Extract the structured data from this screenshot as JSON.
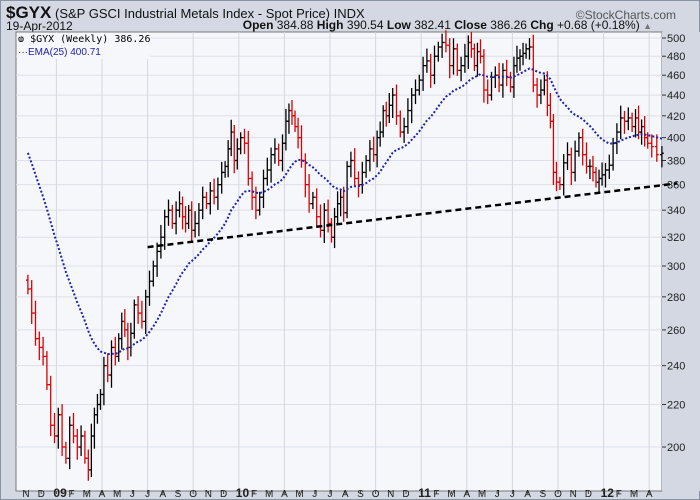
{
  "header": {
    "symbol": "$GYX",
    "name": "(S&P GSCI Industrial Metals Index - Spot Price)",
    "exchange": "INDX",
    "brand": "©StockCharts.com",
    "date": "19-Apr-2012",
    "open_label": "Open",
    "open": "384.88",
    "high_label": "High",
    "high": "390.54",
    "low_label": "Low",
    "low": "382.41",
    "close_label": "Close",
    "close": "386.26",
    "chg_label": "Chg",
    "chg": "+0.68 (+0.18%)"
  },
  "legend": {
    "price": "$GYX (Weekly) 386.26",
    "ema": "EMA(25) 400.71"
  },
  "chart_data": {
    "type": "ohlc-bar",
    "y_scale": "log",
    "ylim": [
      190,
      505
    ],
    "y_ticks": [
      200,
      220,
      240,
      260,
      280,
      300,
      320,
      340,
      360,
      380,
      400,
      420,
      440,
      460,
      480,
      500
    ],
    "x_tick_labels": [
      "N",
      "D",
      "09",
      "F",
      "M",
      "A",
      "M",
      "J",
      "J",
      "A",
      "S",
      "O",
      "N",
      "D",
      "10",
      "F",
      "M",
      "A",
      "M",
      "J",
      "J",
      "A",
      "S",
      "O",
      "N",
      "D",
      "11",
      "F",
      "M",
      "A",
      "M",
      "J",
      "J",
      "A",
      "S",
      "O",
      "N",
      "D",
      "12",
      "F",
      "M",
      "A"
    ],
    "grid": true,
    "colors": {
      "up": "#000000",
      "down": "#dd0000",
      "ema": "#2222aa",
      "trendline": "#000000"
    },
    "ema_period": 25,
    "ema_last": 400.71,
    "weekly_closes_by_month": [
      [
        "2008-11",
        [
          285,
          270,
          255,
          250
        ]
      ],
      [
        "2008-12",
        [
          245,
          230,
          210,
          205
        ]
      ],
      [
        "2009-01",
        [
          215,
          200,
          195,
          210
        ]
      ],
      [
        "2009-02",
        [
          205,
          200,
          205,
          195
        ]
      ],
      [
        "2009-03",
        [
          190,
          205,
          215,
          220,
          225
        ]
      ],
      [
        "2009-04",
        [
          240,
          235,
          250,
          245
        ]
      ],
      [
        "2009-05",
        [
          255,
          265,
          260,
          250,
          258
        ]
      ],
      [
        "2009-06",
        [
          275,
          270,
          265,
          280
        ]
      ],
      [
        "2009-07",
        [
          290,
          300,
          310,
          320
        ]
      ],
      [
        "2009-08",
        [
          335,
          340,
          330,
          340
        ]
      ],
      [
        "2009-09",
        [
          345,
          335,
          330,
          340,
          325
        ]
      ],
      [
        "2009-10",
        [
          330,
          340,
          350,
          345
        ]
      ],
      [
        "2009-11",
        [
          355,
          350,
          360,
          370
        ]
      ],
      [
        "2009-12",
        [
          375,
          390,
          405,
          380,
          390
        ]
      ],
      [
        "2010-01",
        [
          400,
          395,
          365,
          350
        ]
      ],
      [
        "2010-02",
        [
          340,
          350,
          365,
          372
        ]
      ],
      [
        "2010-03",
        [
          385,
          390,
          380,
          395
        ]
      ],
      [
        "2010-04",
        [
          415,
          425,
          420,
          410,
          400
        ]
      ],
      [
        "2010-05",
        [
          380,
          360,
          345,
          350
        ]
      ],
      [
        "2010-06",
        [
          335,
          325,
          340,
          330
        ]
      ],
      [
        "2010-07",
        [
          320,
          335,
          345,
          350,
          338
        ]
      ],
      [
        "2010-08",
        [
          375,
          380,
          365,
          360
        ]
      ],
      [
        "2010-09",
        [
          370,
          380,
          390,
          385
        ]
      ],
      [
        "2010-10",
        [
          400,
          405,
          425,
          420,
          430
        ]
      ],
      [
        "2010-11",
        [
          440,
          420,
          405,
          410
        ]
      ],
      [
        "2010-12",
        [
          425,
          440,
          445,
          455
        ]
      ],
      [
        "2011-01",
        [
          470,
          475,
          460,
          480
        ]
      ],
      [
        "2011-02",
        [
          490,
          495,
          492,
          470
        ]
      ],
      [
        "2011-03",
        [
          488,
          465,
          470,
          480
        ]
      ],
      [
        "2011-04",
        [
          495,
          488,
          470,
          485,
          480
        ]
      ],
      [
        "2011-05",
        [
          445,
          440,
          458,
          460
        ]
      ],
      [
        "2011-06",
        [
          450,
          465,
          458,
          448
        ]
      ],
      [
        "2011-07",
        [
          470,
          478,
          480,
          483,
          488
        ]
      ],
      [
        "2011-08",
        [
          490,
          450,
          440,
          445
        ]
      ],
      [
        "2011-09",
        [
          455,
          430,
          415,
          370,
          362
        ]
      ],
      [
        "2011-10",
        [
          360,
          378,
          385,
          370
        ]
      ],
      [
        "2011-11",
        [
          388,
          400,
          385,
          375
        ]
      ],
      [
        "2011-12",
        [
          375,
          370,
          362,
          365,
          368
        ]
      ],
      [
        "2012-01",
        [
          372,
          376,
          395,
          405
        ]
      ],
      [
        "2012-02",
        [
          418,
          415,
          418,
          410
        ]
      ],
      [
        "2012-03",
        [
          418,
          405,
          410,
          400,
          395
        ]
      ],
      [
        "2012-04",
        [
          392,
          385,
          386.26
        ]
      ]
    ],
    "trendline": {
      "from": [
        "2009-07",
        313
      ],
      "to": [
        "2012-04",
        361
      ]
    }
  }
}
